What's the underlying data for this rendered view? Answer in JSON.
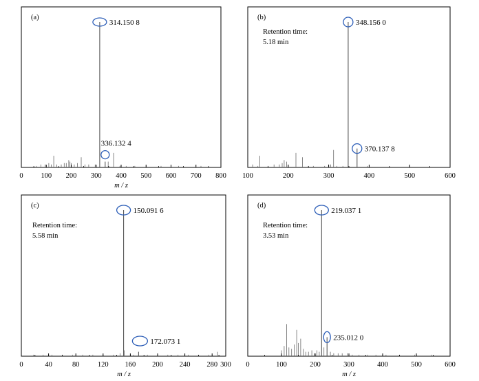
{
  "colors": {
    "frame": "#000000",
    "spectrum_line": "#666666",
    "annotation_circle": "#2e5fb8",
    "background": "#ffffff"
  },
  "chart_data": [
    {
      "type": "bar",
      "panel_tag": "(a)",
      "retention_time_label": "",
      "retention_time_value": "",
      "xlabel": "m / z",
      "ylabel": "",
      "xlim": [
        0,
        800
      ],
      "ylim": [
        0,
        100
      ],
      "xticks": [
        0,
        100,
        200,
        300,
        400,
        500,
        600,
        700,
        800
      ],
      "annotated_peaks": [
        {
          "mz": 314.1508,
          "label": "314.150 8",
          "intensity": 100
        },
        {
          "mz": 336.1324,
          "label": "336.132 4",
          "intensity": 4
        }
      ],
      "peaks": [
        {
          "mz": 60,
          "intensity": 1
        },
        {
          "mz": 78,
          "intensity": 2
        },
        {
          "mz": 95,
          "intensity": 2
        },
        {
          "mz": 110,
          "intensity": 3
        },
        {
          "mz": 120,
          "intensity": 2
        },
        {
          "mz": 130,
          "intensity": 8
        },
        {
          "mz": 142,
          "intensity": 2
        },
        {
          "mz": 160,
          "intensity": 2
        },
        {
          "mz": 172,
          "intensity": 3
        },
        {
          "mz": 180,
          "intensity": 3
        },
        {
          "mz": 190,
          "intensity": 5
        },
        {
          "mz": 195,
          "intensity": 4
        },
        {
          "mz": 200,
          "intensity": 3
        },
        {
          "mz": 212,
          "intensity": 2
        },
        {
          "mz": 225,
          "intensity": 3
        },
        {
          "mz": 240,
          "intensity": 7
        },
        {
          "mz": 255,
          "intensity": 2
        },
        {
          "mz": 270,
          "intensity": 2
        },
        {
          "mz": 296,
          "intensity": 2
        },
        {
          "mz": 314.1508,
          "intensity": 100
        },
        {
          "mz": 336.1324,
          "intensity": 4
        },
        {
          "mz": 348,
          "intensity": 4
        },
        {
          "mz": 370,
          "intensity": 10
        },
        {
          "mz": 395,
          "intensity": 1
        },
        {
          "mz": 420,
          "intensity": 1
        },
        {
          "mz": 455,
          "intensity": 1
        },
        {
          "mz": 500,
          "intensity": 1
        },
        {
          "mz": 560,
          "intensity": 1
        },
        {
          "mz": 630,
          "intensity": 1
        },
        {
          "mz": 720,
          "intensity": 1
        }
      ]
    },
    {
      "type": "bar",
      "panel_tag": "(b)",
      "retention_time_label": "Retention time:",
      "retention_time_value": "5.18 min",
      "xlabel": "",
      "ylabel": "",
      "xlim": [
        100,
        600
      ],
      "ylim": [
        0,
        100
      ],
      "xticks": [
        100,
        200,
        300,
        400,
        500,
        600
      ],
      "annotated_peaks": [
        {
          "mz": 348.156,
          "label": "348.156 0",
          "intensity": 100
        },
        {
          "mz": 370.1378,
          "label": "370.137 8",
          "intensity": 13
        }
      ],
      "peaks": [
        {
          "mz": 112,
          "intensity": 2
        },
        {
          "mz": 125,
          "intensity": 1
        },
        {
          "mz": 130,
          "intensity": 8
        },
        {
          "mz": 150,
          "intensity": 1
        },
        {
          "mz": 165,
          "intensity": 2
        },
        {
          "mz": 178,
          "intensity": 2
        },
        {
          "mz": 185,
          "intensity": 3
        },
        {
          "mz": 190,
          "intensity": 5
        },
        {
          "mz": 196,
          "intensity": 4
        },
        {
          "mz": 200,
          "intensity": 2
        },
        {
          "mz": 219,
          "intensity": 10
        },
        {
          "mz": 235,
          "intensity": 7
        },
        {
          "mz": 250,
          "intensity": 1
        },
        {
          "mz": 262,
          "intensity": 1
        },
        {
          "mz": 290,
          "intensity": 1
        },
        {
          "mz": 300,
          "intensity": 2
        },
        {
          "mz": 305,
          "intensity": 2
        },
        {
          "mz": 312,
          "intensity": 12
        },
        {
          "mz": 320,
          "intensity": 1
        },
        {
          "mz": 335,
          "intensity": 1
        },
        {
          "mz": 348.156,
          "intensity": 100
        },
        {
          "mz": 370.1378,
          "intensity": 13
        },
        {
          "mz": 395,
          "intensity": 1
        },
        {
          "mz": 500,
          "intensity": 1
        }
      ]
    },
    {
      "type": "bar",
      "panel_tag": "(c)",
      "retention_time_label": "Retention time:",
      "retention_time_value": "5.58 min",
      "xlabel": "m / z",
      "ylabel": "",
      "xlim": [
        0,
        300
      ],
      "ylim": [
        0,
        100
      ],
      "xticks": [
        0,
        40,
        80,
        120,
        160,
        200,
        240,
        280,
        300
      ],
      "annotated_peaks": [
        {
          "mz": 150.0916,
          "label": "150.091 6",
          "intensity": 100
        },
        {
          "mz": 172.0731,
          "label": "172.073 1",
          "intensity": 3
        }
      ],
      "peaks": [
        {
          "mz": 18,
          "intensity": 1
        },
        {
          "mz": 32,
          "intensity": 1
        },
        {
          "mz": 45,
          "intensity": 1
        },
        {
          "mz": 60,
          "intensity": 1
        },
        {
          "mz": 75,
          "intensity": 1
        },
        {
          "mz": 90,
          "intensity": 1
        },
        {
          "mz": 105,
          "intensity": 1
        },
        {
          "mz": 120,
          "intensity": 1
        },
        {
          "mz": 135,
          "intensity": 1
        },
        {
          "mz": 145,
          "intensity": 2
        },
        {
          "mz": 150.0916,
          "intensity": 100
        },
        {
          "mz": 151,
          "intensity": 4
        },
        {
          "mz": 165,
          "intensity": 1
        },
        {
          "mz": 172.0731,
          "intensity": 3
        },
        {
          "mz": 185,
          "intensity": 1
        },
        {
          "mz": 200,
          "intensity": 1
        },
        {
          "mz": 215,
          "intensity": 1
        },
        {
          "mz": 230,
          "intensity": 1
        },
        {
          "mz": 245,
          "intensity": 1
        },
        {
          "mz": 260,
          "intensity": 1
        },
        {
          "mz": 275,
          "intensity": 1
        },
        {
          "mz": 288,
          "intensity": 3
        }
      ]
    },
    {
      "type": "bar",
      "panel_tag": "(d)",
      "retention_time_label": "Retention time:",
      "retention_time_value": "3.53 min",
      "xlabel": "m / z",
      "ylabel": "",
      "xlim": [
        0,
        600
      ],
      "ylim": [
        0,
        100
      ],
      "xticks": [
        0,
        100,
        200,
        300,
        400,
        500,
        600
      ],
      "annotated_peaks": [
        {
          "mz": 219.0371,
          "label": "219.037 1",
          "intensity": 100
        },
        {
          "mz": 235.012,
          "label": "235.012 0",
          "intensity": 13
        }
      ],
      "peaks": [
        {
          "mz": 100,
          "intensity": 4
        },
        {
          "mz": 108,
          "intensity": 7
        },
        {
          "mz": 115,
          "intensity": 22
        },
        {
          "mz": 122,
          "intensity": 6
        },
        {
          "mz": 130,
          "intensity": 5
        },
        {
          "mz": 138,
          "intensity": 8
        },
        {
          "mz": 145,
          "intensity": 18
        },
        {
          "mz": 150,
          "intensity": 9
        },
        {
          "mz": 157,
          "intensity": 12
        },
        {
          "mz": 165,
          "intensity": 5
        },
        {
          "mz": 172,
          "intensity": 3
        },
        {
          "mz": 180,
          "intensity": 3
        },
        {
          "mz": 190,
          "intensity": 4
        },
        {
          "mz": 198,
          "intensity": 2
        },
        {
          "mz": 205,
          "intensity": 4
        },
        {
          "mz": 212,
          "intensity": 3
        },
        {
          "mz": 219.0371,
          "intensity": 100
        },
        {
          "mz": 226,
          "intensity": 6
        },
        {
          "mz": 235.012,
          "intensity": 13
        },
        {
          "mz": 245,
          "intensity": 3
        },
        {
          "mz": 255,
          "intensity": 2
        },
        {
          "mz": 268,
          "intensity": 2
        },
        {
          "mz": 280,
          "intensity": 2
        },
        {
          "mz": 295,
          "intensity": 2
        },
        {
          "mz": 310,
          "intensity": 1
        },
        {
          "mz": 330,
          "intensity": 1
        },
        {
          "mz": 355,
          "intensity": 1
        },
        {
          "mz": 380,
          "intensity": 1
        },
        {
          "mz": 410,
          "intensity": 1
        },
        {
          "mz": 450,
          "intensity": 1
        },
        {
          "mz": 495,
          "intensity": 1
        },
        {
          "mz": 545,
          "intensity": 1
        }
      ]
    }
  ]
}
